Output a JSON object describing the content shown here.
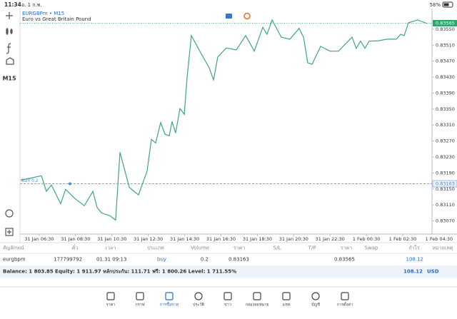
{
  "status_bar": {
    "time": "11:34",
    "date": "อ. 1 ก.พ.",
    "battery": "58%"
  },
  "toolbar": {
    "timeframe": "M15"
  },
  "chart_data": {
    "type": "line",
    "title": "EURGBPm • M15",
    "subtitle": "Euro vs Great Britain Pound",
    "x": [
      5.48,
      6.11,
      6.62,
      6.89,
      7.17,
      7.68,
      7.95,
      8.46,
      8.98,
      9.45,
      9.68,
      9.92,
      10.39,
      10.7,
      10.94,
      11.45,
      11.96,
      12.43,
      12.67,
      12.9,
      13.18,
      13.42,
      13.65,
      13.81,
      14.0,
      14.24,
      14.48,
      14.63,
      14.87,
      15.38,
      15.85,
      16.09,
      16.32,
      16.79,
      17.34,
      17.86,
      18.33,
      18.8,
      19.03,
      19.31,
      19.82,
      20.29,
      20.8,
      21.04,
      21.27,
      21.51,
      21.98,
      22.49,
      22.96,
      23.71,
      23.94,
      24.18,
      24.42,
      24.65,
      25.16,
      25.64,
      26.15,
      26.38,
      26.58,
      26.81,
      27.32,
      27.84
    ],
    "values": [
      0.83172,
      0.83178,
      0.83183,
      0.83144,
      0.8316,
      0.83113,
      0.83149,
      0.83126,
      0.83108,
      0.83144,
      0.83104,
      0.8309,
      0.83083,
      0.83072,
      0.83242,
      0.83154,
      0.83135,
      0.83194,
      0.83274,
      0.83265,
      0.83316,
      0.83287,
      0.83283,
      0.83319,
      0.8329,
      0.83351,
      0.83337,
      0.83427,
      0.83534,
      0.83491,
      0.83453,
      0.83423,
      0.8348,
      0.83503,
      0.83498,
      0.83534,
      0.83495,
      0.83555,
      0.83537,
      0.83573,
      0.8353,
      0.83525,
      0.83552,
      0.8353,
      0.83466,
      0.83462,
      0.83507,
      0.83495,
      0.83495,
      0.8353,
      0.83502,
      0.8352,
      0.83502,
      0.8352,
      0.83521,
      0.83525,
      0.83525,
      0.83537,
      0.83534,
      0.83566,
      0.83573,
      0.83564
    ],
    "color": "#3fa67d",
    "xlim": [
      5.44,
      28.11
    ],
    "xticks": [
      {
        "value": 6.5,
        "label": "31 Jan 06:30"
      },
      {
        "value": 8.5,
        "label": "31 Jan 08:30"
      },
      {
        "value": 10.5,
        "label": "31 Jan 10:30"
      },
      {
        "value": 12.5,
        "label": "31 Jan 12:30"
      },
      {
        "value": 14.5,
        "label": "31 Jan 14:30"
      },
      {
        "value": 16.5,
        "label": "31 Jan 16:30"
      },
      {
        "value": 18.5,
        "label": "31 Jan 18:30"
      },
      {
        "value": 20.5,
        "label": "31 Jan 20:30"
      },
      {
        "value": 22.5,
        "label": "31 Jan 22:30"
      },
      {
        "value": 24.5,
        "label": "1 Feb 00:30"
      },
      {
        "value": 26.5,
        "label": "1 Feb 02:30"
      },
      {
        "value": 28.5,
        "label": "1 Feb 04:30"
      }
    ],
    "ylim": [
      0.83037,
      0.83598
    ],
    "yticks": [
      {
        "value": 0.8355,
        "label": "0.83550"
      },
      {
        "value": 0.8351,
        "label": "0.83510"
      },
      {
        "value": 0.8347,
        "label": "0.83470"
      },
      {
        "value": 0.8343,
        "label": "0.83430"
      },
      {
        "value": 0.8339,
        "label": "0.83390"
      },
      {
        "value": 0.8335,
        "label": "0.83350"
      },
      {
        "value": 0.8331,
        "label": "0.83310"
      },
      {
        "value": 0.8327,
        "label": "0.83270"
      },
      {
        "value": 0.8323,
        "label": "0.83230"
      },
      {
        "value": 0.8319,
        "label": "0.83190"
      },
      {
        "value": 0.8315,
        "label": "0.83150"
      },
      {
        "value": 0.8311,
        "label": "0.83110"
      },
      {
        "value": 0.8307,
        "label": "0.83070"
      }
    ],
    "last_price": {
      "value": 0.83565,
      "color": "#2ea36a"
    },
    "position": {
      "label": "BUY 0.2",
      "value": 0.83163,
      "x": 8.19,
      "color": "#4a8fdc"
    }
  },
  "positions_table": {
    "columns": [
      "สัญลักษณ์",
      "ตั๋ว",
      "เวลา",
      "ประเภท",
      "Volume",
      "ราคา",
      "S/L",
      "T/P",
      "ราคา",
      "Swap",
      "กำไร",
      "หมายเหตุ"
    ],
    "rows": [
      {
        "symbol": "eurgbpm",
        "ticket": "177799792",
        "time": "01.31 09:13",
        "type": "buy",
        "volume": "0.2",
        "open_price": "0.83163",
        "current_price": "0.83565",
        "profit": "108.12"
      }
    ]
  },
  "account": {
    "summary": "Balance: 1 803.85 Equity: 1 911.97 หลักประกัน: 111.71 ฟรี: 1 800.26 Level: 1 711.55%",
    "profit": "108.12",
    "currency": "USD"
  },
  "tabs": {
    "items": [
      "ราคา",
      "กราฟ",
      "การซื้อขาย",
      "ประวัติ",
      "ข่าว",
      "กล่องจดหมาย",
      "แชท",
      "บัญชี",
      "การตั้งค่า"
    ],
    "active": 2
  }
}
